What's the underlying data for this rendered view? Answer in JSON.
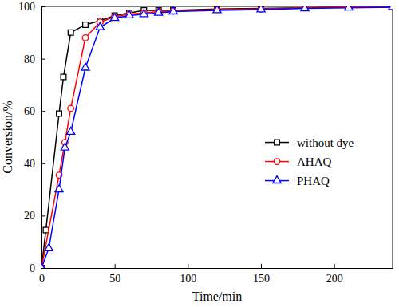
{
  "chart_data": {
    "type": "line",
    "x_label": "Time/min",
    "y_label": "Conversion/%",
    "xlim": [
      0,
      240
    ],
    "xticks": [
      0,
      50,
      100,
      150,
      200
    ],
    "ylim": [
      0,
      100
    ],
    "yticks": [
      0,
      20,
      40,
      60,
      80,
      100
    ],
    "legend": "right",
    "series": [
      {
        "name": "without dye",
        "color": "#000000",
        "marker": "square",
        "x": [
          0,
          3,
          12,
          15,
          20,
          30,
          40,
          50,
          60,
          70,
          80,
          90,
          120,
          150,
          180,
          210,
          240
        ],
        "values": [
          0,
          14.5,
          59,
          73,
          90,
          93,
          94.5,
          96.5,
          97.5,
          98.5,
          98.5,
          98.5,
          99,
          99.2,
          99.5,
          99.8,
          99.8
        ]
      },
      {
        "name": "AHAQ",
        "color": "#ff0000",
        "marker": "circle",
        "x": [
          0,
          12,
          16,
          20,
          30,
          40,
          50,
          60,
          70,
          80,
          90,
          120,
          150,
          180,
          210,
          240
        ],
        "values": [
          0,
          35.5,
          48,
          61,
          88,
          94,
          96,
          97,
          97.5,
          98,
          98.2,
          98.8,
          99,
          99.5,
          99.8,
          99.8
        ]
      },
      {
        "name": "PHAQ",
        "color": "#0000ff",
        "marker": "triangle",
        "x": [
          0,
          5,
          12,
          16,
          20,
          30,
          40,
          50,
          60,
          70,
          80,
          90,
          120,
          150,
          180,
          210,
          240
        ],
        "values": [
          0,
          7.5,
          30,
          46,
          52,
          76.5,
          92,
          95.5,
          96.5,
          97,
          97.5,
          98,
          98.5,
          98.8,
          99.2,
          99.5,
          99.7
        ]
      }
    ]
  }
}
